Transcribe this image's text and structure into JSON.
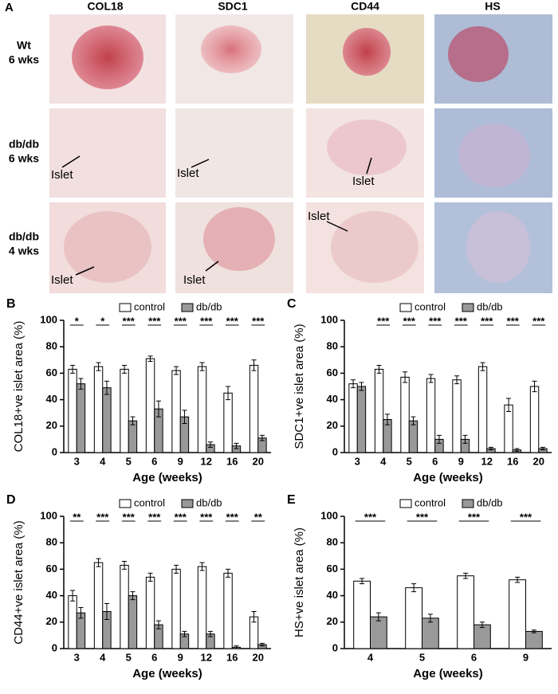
{
  "panel_a": {
    "label": "A",
    "columns": [
      "COL18",
      "SDC1",
      "CD44",
      "HS"
    ],
    "rows": [
      [
        "Wt",
        "6 wks"
      ],
      [
        "db/db",
        "6 wks"
      ],
      [
        "db/db",
        "4 wks"
      ]
    ],
    "islet_labels": [
      "Islet",
      "Islet",
      "Islet",
      "Islet",
      "Islet",
      "Islet"
    ]
  },
  "chart_data": [
    {
      "type": "bar",
      "panel": "B",
      "ylabel": "COL18+ve islet area (%)",
      "xlabel": "Age (weeks)",
      "categories": [
        "3",
        "4",
        "5",
        "6",
        "9",
        "12",
        "16",
        "20"
      ],
      "series": [
        {
          "name": "control",
          "color": "#ffffff",
          "values": [
            63,
            65,
            63,
            71,
            62,
            65,
            45,
            66
          ],
          "errors": [
            3,
            3,
            3,
            2,
            3,
            3,
            5,
            4
          ]
        },
        {
          "name": "db/db",
          "color": "#999999",
          "values": [
            52,
            49,
            24,
            33,
            27,
            6,
            5,
            11
          ],
          "errors": [
            4,
            5,
            3,
            6,
            5,
            2,
            2,
            2
          ]
        }
      ],
      "annotations": [
        "*",
        "*",
        "***",
        "***",
        "***",
        "***",
        "***",
        "***"
      ],
      "ylim": [
        0,
        100
      ],
      "yticks": [
        0,
        20,
        40,
        60,
        80,
        100
      ]
    },
    {
      "type": "bar",
      "panel": "C",
      "ylabel": "SDC1+ve islet area (%)",
      "xlabel": "Age (weeks)",
      "categories": [
        "3",
        "4",
        "5",
        "6",
        "9",
        "12",
        "16",
        "20"
      ],
      "series": [
        {
          "name": "control",
          "color": "#ffffff",
          "values": [
            52,
            63,
            57,
            56,
            55,
            65,
            36,
            50
          ],
          "errors": [
            3,
            3,
            4,
            3,
            3,
            3,
            5,
            4
          ]
        },
        {
          "name": "db/db",
          "color": "#999999",
          "values": [
            50,
            25,
            24,
            10,
            10,
            3,
            2,
            3
          ],
          "errors": [
            3,
            4,
            3,
            3,
            3,
            1,
            1,
            1
          ]
        }
      ],
      "annotations": [
        null,
        "***",
        "***",
        "***",
        "***",
        "***",
        "***",
        "***"
      ],
      "ylim": [
        0,
        100
      ],
      "yticks": [
        0,
        20,
        40,
        60,
        80,
        100
      ]
    },
    {
      "type": "bar",
      "panel": "D",
      "ylabel": "CD44+ve islet area (%)",
      "xlabel": "Age (weeks)",
      "categories": [
        "3",
        "4",
        "5",
        "6",
        "9",
        "12",
        "16",
        "20"
      ],
      "series": [
        {
          "name": "control",
          "color": "#ffffff",
          "values": [
            40,
            65,
            63,
            54,
            60,
            62,
            57,
            24
          ],
          "errors": [
            4,
            3,
            3,
            3,
            3,
            3,
            3,
            4
          ]
        },
        {
          "name": "db/db",
          "color": "#999999",
          "values": [
            27,
            28,
            40,
            18,
            11,
            11,
            1,
            3
          ],
          "errors": [
            4,
            6,
            3,
            3,
            2,
            2,
            1,
            1
          ]
        }
      ],
      "annotations": [
        "**",
        "***",
        "***",
        "***",
        "***",
        "***",
        "***",
        "**"
      ],
      "ylim": [
        0,
        100
      ],
      "yticks": [
        0,
        20,
        40,
        60,
        80,
        100
      ]
    },
    {
      "type": "bar",
      "panel": "E",
      "ylabel": "HS+ve islet area (%)",
      "xlabel": "Age (weeks)",
      "categories": [
        "4",
        "5",
        "6",
        "9"
      ],
      "series": [
        {
          "name": "control",
          "color": "#ffffff",
          "values": [
            51,
            46,
            55,
            52
          ],
          "errors": [
            2,
            3,
            2,
            2
          ]
        },
        {
          "name": "db/db",
          "color": "#999999",
          "values": [
            24,
            23,
            18,
            13
          ],
          "errors": [
            3,
            3,
            2,
            1
          ]
        }
      ],
      "annotations": [
        "***",
        "***",
        "***",
        "***"
      ],
      "ylim": [
        0,
        100
      ],
      "yticks": [
        0,
        20,
        40,
        60,
        80,
        100
      ]
    }
  ]
}
